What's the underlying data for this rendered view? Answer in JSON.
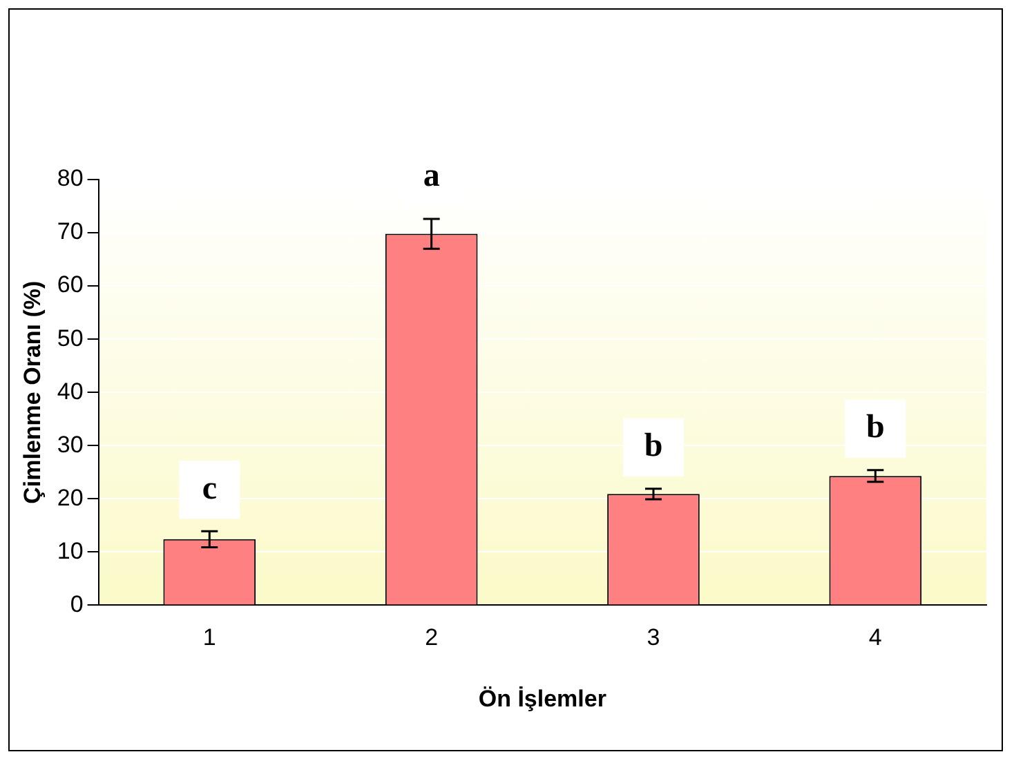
{
  "chart_data": {
    "type": "bar",
    "xlabel": "Ön İşlemler",
    "ylabel": "Çimlenme Oranı (%)",
    "categories": [
      "1",
      "2",
      "3",
      "4"
    ],
    "values": [
      12.4,
      69.8,
      20.9,
      24.3
    ],
    "errors": [
      1.5,
      2.8,
      1,
      1.1
    ],
    "color": "#ff8080",
    "ylim": [
      0,
      80
    ],
    "yticks": [
      0,
      10,
      20,
      30,
      40,
      50,
      60,
      70,
      80
    ],
    "grid": "y",
    "annotations": [
      {
        "text": "c",
        "x": "1",
        "y": 12.4
      },
      {
        "text": "a",
        "x": "2",
        "y": 69.8
      },
      {
        "text": "b",
        "x": "3",
        "y": 20.9
      },
      {
        "text": "b",
        "x": "4",
        "y": 24.3
      }
    ]
  }
}
